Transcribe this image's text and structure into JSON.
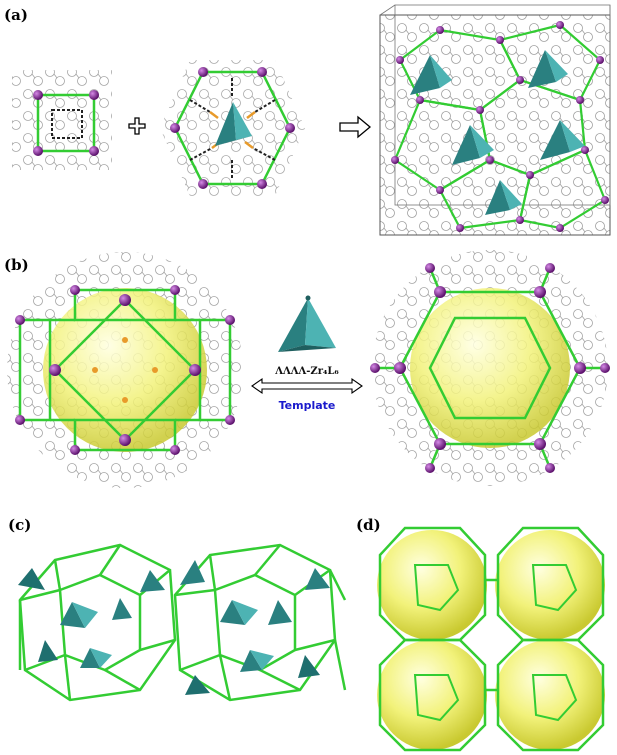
{
  "panels": [
    {
      "id": "a",
      "label": "(a)"
    },
    {
      "id": "b",
      "label": "(b)"
    },
    {
      "id": "c",
      "label": "(c)"
    },
    {
      "id": "d",
      "label": "(d)"
    }
  ],
  "panel_b": {
    "tetrahedron_label": "ΛΛΛΛ-Zr₄L₆",
    "template_label": "Template"
  },
  "colors": {
    "framework_green": "#33cc33",
    "metal_node": "#7a1a8c",
    "tetrahedron": "#2e8b8b",
    "sphere": "#f2f27a",
    "ligand_lines": "#8a8a8a",
    "template_text": "#1a1acc"
  }
}
